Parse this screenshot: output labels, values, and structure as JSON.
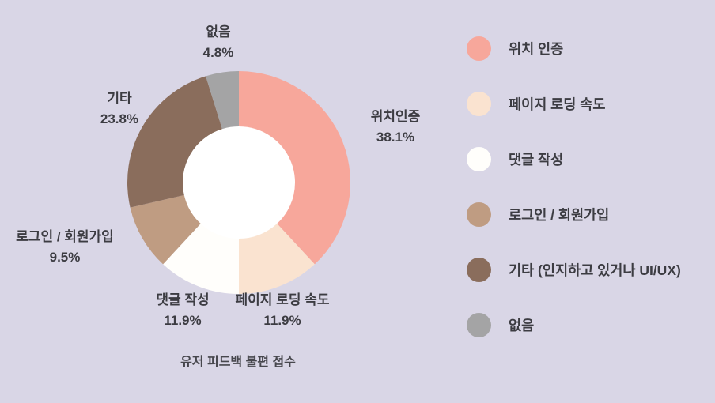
{
  "background": "#d9d6e6",
  "text_color": "#3c3c42",
  "chart_data": {
    "type": "pie",
    "donut": true,
    "hole_color": "#ffffff",
    "title": "유저 피드백 불편 접수",
    "legend_position": "right",
    "start_angle_deg": 0,
    "direction": "clockwise",
    "segments": [
      {
        "label": "위치인증",
        "legend_label": "위치 인증",
        "value": 38.1,
        "pct_label": "38.1%",
        "color": "#f7a79b"
      },
      {
        "label": "페이지 로딩 속도",
        "legend_label": "페이지 로딩 속도",
        "value": 11.9,
        "pct_label": "11.9%",
        "color": "#fae3d0"
      },
      {
        "label": "댓글 작성",
        "legend_label": "댓글 작성",
        "value": 11.9,
        "pct_label": "11.9%",
        "color": "#fffefb"
      },
      {
        "label": "로그인 / 회원가입",
        "legend_label": "로그인 / 회원가입",
        "value": 9.5,
        "pct_label": "9.5%",
        "color": "#bf9c82"
      },
      {
        "label": "기타",
        "legend_label": "기타 (인지하고 있거나 UI/UX)",
        "value": 23.8,
        "pct_label": "23.8%",
        "color": "#8a6d5c"
      },
      {
        "label": "없음",
        "legend_label": "없음",
        "value": 4.8,
        "pct_label": "4.8%",
        "color": "#a4a4a5"
      }
    ]
  }
}
